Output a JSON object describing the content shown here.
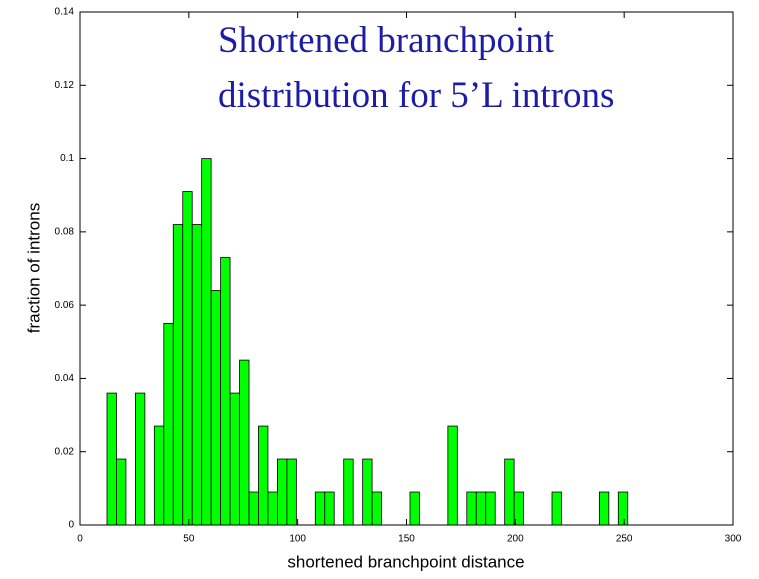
{
  "chart_data": {
    "type": "histogram",
    "title": [
      "Shortened branchpoint",
      "distribution for 5’L introns"
    ],
    "xlabel": "shortened branchpoint distance",
    "ylabel": "fraction of introns",
    "color": "#00ff00",
    "bins": [
      12.4,
      16.75,
      21.1,
      25.45,
      29.8,
      34.15,
      38.5,
      42.85,
      47.2,
      51.55,
      55.9,
      60.25,
      64.6,
      68.95,
      73.3,
      77.65,
      82,
      86.35,
      90.7,
      95.05,
      99.4,
      103.75,
      108.1,
      112.45,
      116.8,
      121.15,
      125.5,
      129.85,
      134.2,
      138.55,
      142.9,
      147.25,
      151.6,
      155.95,
      160.3,
      164.65,
      169,
      173.35,
      177.7,
      182.05,
      186.4,
      190.75,
      195.1,
      199.45,
      203.8,
      208.15,
      212.5,
      216.85,
      221.2,
      225.55,
      229.9,
      234.25,
      238.6,
      242.95,
      247.3,
      251.65
    ],
    "values": [
      0.036,
      0.018,
      0,
      0.036,
      0,
      0.027,
      0.055,
      0.082,
      0.091,
      0.082,
      0.1,
      0.064,
      0.073,
      0.036,
      0.045,
      0.009,
      0.027,
      0.009,
      0.018,
      0.018,
      0,
      0,
      0.009,
      0.009,
      0,
      0.018,
      0,
      0.018,
      0.009,
      0,
      0,
      0,
      0.009,
      0,
      0,
      0,
      0.027,
      0,
      0.009,
      0.009,
      0.009,
      0,
      0.018,
      0.009,
      0,
      0,
      0,
      0.009,
      0,
      0,
      0,
      0,
      0.009,
      0,
      0.009
    ],
    "xlim": [
      0,
      300
    ],
    "xticks": [
      0,
      50,
      100,
      150,
      200,
      250,
      300
    ],
    "ylim": [
      0,
      0.14
    ],
    "yticks": [
      0,
      0.02,
      0.04,
      0.06,
      0.08,
      0.1,
      0.12,
      0.14
    ]
  }
}
